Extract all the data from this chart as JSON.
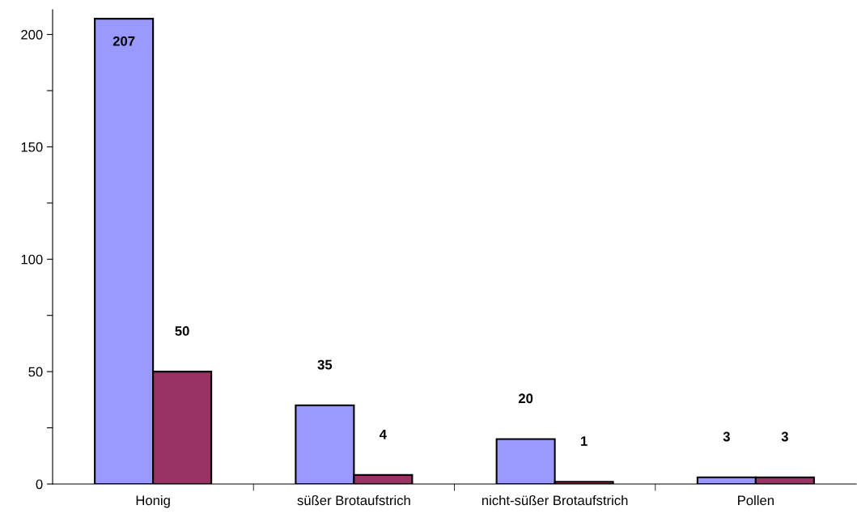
{
  "chart_data": {
    "type": "bar",
    "categories": [
      "Honig",
      "süßer Brotaufstrich",
      "nicht-süßer Brotaufstrich",
      "Pollen"
    ],
    "series": [
      {
        "color": "#9999ff",
        "values": [
          207,
          35,
          20,
          3
        ]
      },
      {
        "color": "#993366",
        "values": [
          50,
          4,
          1,
          3
        ]
      }
    ],
    "ylim": [
      0,
      211
    ],
    "yticks": [
      0,
      {
        "value": 25,
        "label": null
      },
      50,
      {
        "value": 75,
        "label": null
      },
      100,
      {
        "value": 125,
        "label": null
      },
      150,
      {
        "value": 175,
        "label": null
      },
      200
    ],
    "data_labels": true,
    "grid": false,
    "legend": false
  }
}
